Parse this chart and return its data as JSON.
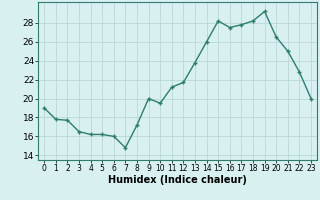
{
  "x": [
    0,
    1,
    2,
    3,
    4,
    5,
    6,
    7,
    8,
    9,
    10,
    11,
    12,
    13,
    14,
    15,
    16,
    17,
    18,
    19,
    20,
    21,
    22,
    23
  ],
  "y": [
    19.0,
    17.8,
    17.7,
    16.5,
    16.2,
    16.2,
    16.0,
    14.8,
    17.2,
    20.0,
    19.5,
    21.2,
    21.7,
    23.8,
    26.0,
    28.2,
    27.5,
    27.8,
    28.2,
    29.2,
    26.5,
    25.0,
    22.8,
    20.0
  ],
  "line_color": "#2e7d6e",
  "marker": "+",
  "marker_size": 3,
  "line_width": 1.0,
  "xlabel": "Humidex (Indice chaleur)",
  "xlabel_fontsize": 7,
  "bg_color": "#d8f0f0",
  "grid_color": "#b8d8d8",
  "xlim": [
    -0.5,
    23.5
  ],
  "ylim": [
    13.5,
    30.2
  ],
  "yticks": [
    14,
    16,
    18,
    20,
    22,
    24,
    26,
    28
  ],
  "xtick_fontsize": 5.5,
  "ytick_fontsize": 6.5
}
